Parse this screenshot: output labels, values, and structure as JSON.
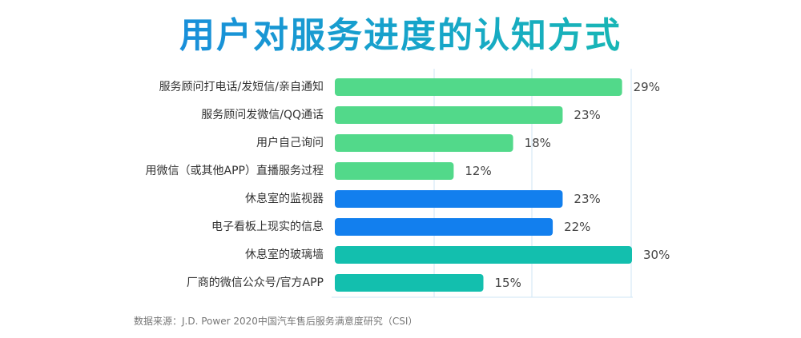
{
  "title": "用户对服务进度的认知方式",
  "source_note": "数据来源：J.D. Power 2020中国汽车售后服务满意度研究（CSI）",
  "colors": {
    "title_gradient_start": "#1b7fe6",
    "title_gradient_end": "#1ac6a2",
    "grid": "#cfe6f5",
    "label_text": "#333333",
    "value_text": "#444444"
  },
  "chart_data": {
    "type": "bar",
    "orientation": "horizontal",
    "categories": [
      "服务顾问打电话/发短信/亲自通知",
      "服务顾问发微信/QQ通话",
      "用户自己询问",
      "用微信（或其他APP）直播服务过程",
      "休息室的监视器",
      "电子看板上现实的信息",
      "休息室的玻璃墙",
      "厂商的微信公众号/官方APP"
    ],
    "values": [
      29,
      23,
      18,
      12,
      23,
      22,
      30,
      15
    ],
    "value_labels": [
      "29%",
      "23%",
      "18%",
      "12%",
      "23%",
      "22%",
      "30%",
      "15%"
    ],
    "bar_colors": [
      "#52d98a",
      "#52d98a",
      "#52d98a",
      "#52d98a",
      "#127fee",
      "#127fee",
      "#13bfae",
      "#13bfae"
    ],
    "xlim": [
      0,
      30
    ],
    "grid": true
  }
}
